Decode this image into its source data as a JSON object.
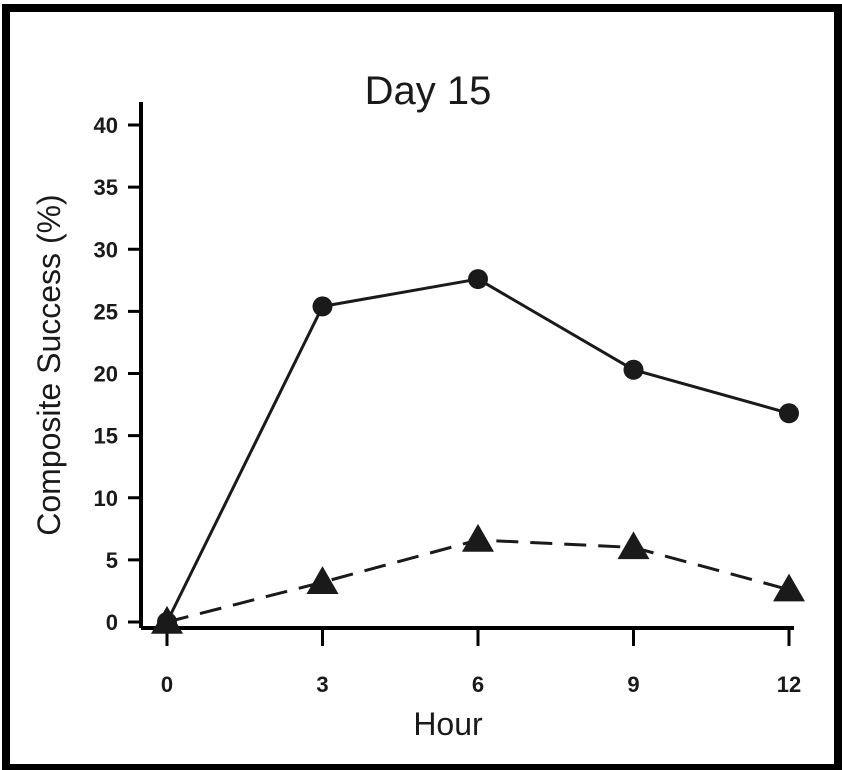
{
  "chart_data": {
    "type": "line",
    "title": "Day 15",
    "xlabel": "Hour",
    "ylabel": "Composite Success (%)",
    "x": [
      0,
      3,
      6,
      9,
      12
    ],
    "xlim": [
      0,
      12
    ],
    "ylim": [
      0,
      40
    ],
    "xticks": [
      "0",
      "3",
      "6",
      "9",
      "12"
    ],
    "yticks": [
      "0",
      "5",
      "10",
      "15",
      "20",
      "25",
      "30",
      "35",
      "40"
    ],
    "grid": false,
    "legend": "none",
    "series": [
      {
        "marker": "circle",
        "line_style": "solid",
        "color": "#1a1a1a",
        "values": [
          0,
          25.4,
          27.6,
          20.3,
          16.8
        ]
      },
      {
        "marker": "triangle",
        "line_style": "dashed",
        "color": "#1a1a1a",
        "values": [
          0,
          3.2,
          6.6,
          6.0,
          2.6
        ]
      }
    ]
  }
}
